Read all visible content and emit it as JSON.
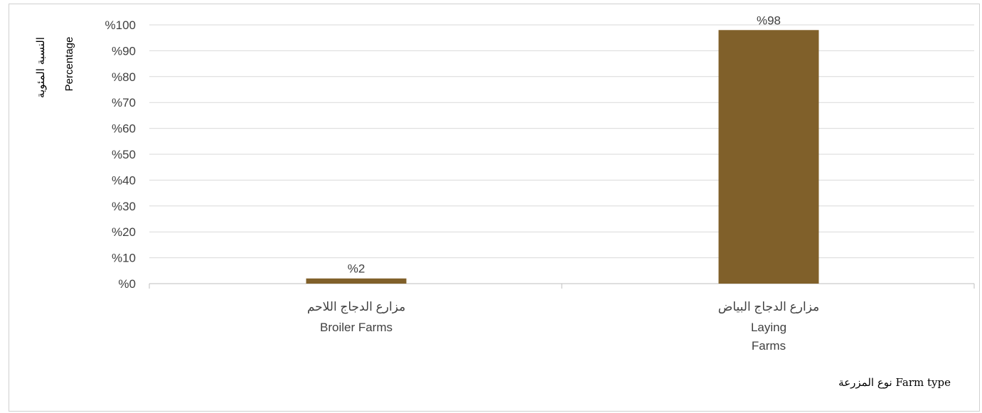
{
  "chart_data": {
    "type": "bar",
    "categories": [
      {
        "ar": "مزارع الدجاج اللاحم",
        "en": [
          "Broiler Farms"
        ]
      },
      {
        "ar": "مزارع الدجاج البياض",
        "en": [
          "Laying",
          "Farms"
        ]
      }
    ],
    "values": [
      2,
      98
    ],
    "data_labels": [
      "%2",
      "%98"
    ],
    "ylabel_ar": "النسبة المئوية",
    "ylabel_en": "Percentage",
    "xlabel": "نوع المزرعة Farm type",
    "ylim": [
      0,
      100
    ],
    "yticks": [
      0,
      10,
      20,
      30,
      40,
      50,
      60,
      70,
      80,
      90,
      100
    ],
    "ytick_labels": [
      "%0",
      "%10",
      "%20",
      "%30",
      "%40",
      "%50",
      "%60",
      "%70",
      "%80",
      "%90",
      "%100"
    ],
    "grid": true,
    "bar_color": "#80602A",
    "gridline_color": "#d9d9d9",
    "axis_color": "#bfbfbf",
    "text_color": "#404040"
  }
}
